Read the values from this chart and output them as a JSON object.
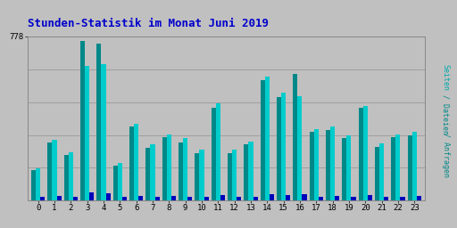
{
  "title": "Stunden-Statistik im Monat Juni 2019",
  "title_color": "#0000cc",
  "ylabel": "Seiten / Dateien / Anfragen",
  "background_color": "#c0c0c0",
  "plot_background_color": "#c0c0c0",
  "grid_color": "#999999",
  "ylim_max": 778,
  "hours": [
    0,
    1,
    2,
    3,
    4,
    5,
    6,
    7,
    8,
    9,
    10,
    11,
    12,
    13,
    14,
    15,
    16,
    17,
    18,
    19,
    20,
    21,
    22,
    23
  ],
  "seiten": [
    155,
    290,
    230,
    640,
    645,
    180,
    365,
    265,
    315,
    295,
    240,
    460,
    240,
    280,
    590,
    510,
    495,
    340,
    350,
    310,
    450,
    270,
    315,
    325
  ],
  "dateien": [
    145,
    275,
    215,
    755,
    745,
    165,
    350,
    250,
    300,
    275,
    225,
    440,
    225,
    265,
    570,
    490,
    600,
    325,
    335,
    295,
    440,
    255,
    300,
    310
  ],
  "anfragen": [
    20,
    22,
    16,
    38,
    36,
    16,
    22,
    20,
    22,
    20,
    16,
    28,
    16,
    18,
    32,
    28,
    30,
    20,
    22,
    18,
    26,
    16,
    20,
    22
  ],
  "color_seiten": "#00cccc",
  "color_dateien": "#008888",
  "color_anfragen": "#0000bb",
  "bar_width": 0.28
}
